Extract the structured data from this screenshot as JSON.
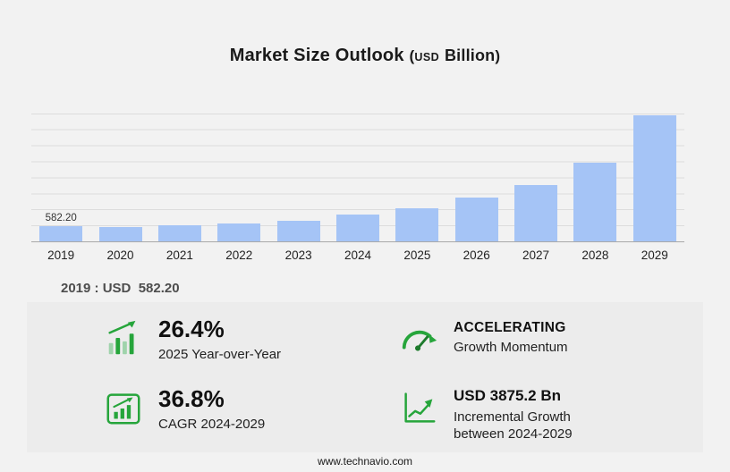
{
  "title": {
    "main": "Market Size Outlook",
    "open_paren": "(",
    "currency": "USD",
    "unit": "Billion",
    "close_paren": ")"
  },
  "chart_data": {
    "type": "bar",
    "title": "Market Size Outlook (USD Billion)",
    "categories": [
      "2019",
      "2020",
      "2021",
      "2022",
      "2023",
      "2024",
      "2025",
      "2026",
      "2027",
      "2028",
      "2029"
    ],
    "values": [
      582.2,
      560,
      615,
      690,
      800,
      1023.4,
      1293.6,
      1682,
      2185,
      3050,
      4898.6
    ],
    "xlabel": "",
    "ylabel": "USD Billion",
    "ylim": [
      0,
      4950
    ],
    "grid": true,
    "legend": "none",
    "bar_color": "#a5c4f6",
    "bar_label": {
      "index": 0,
      "text": "582.20"
    }
  },
  "annotation": {
    "text": "2019 : USD  582.20"
  },
  "stats": [
    {
      "id": "yoy",
      "icon": "growth-bars-arrow-icon",
      "value": "26.4%",
      "label": "2025 Year-over-Year"
    },
    {
      "id": "momentum",
      "icon": "speedometer-icon",
      "value": "ACCELERATING",
      "label": "Growth Momentum"
    },
    {
      "id": "cagr",
      "icon": "cagr-box-chart-icon",
      "value": "36.8%",
      "label": "CAGR 2024-2029"
    },
    {
      "id": "incremental",
      "icon": "line-growth-arrow-icon",
      "value": "USD 3875.2 Bn",
      "label": "Incremental Growth between 2024-2029"
    }
  ],
  "footer": {
    "url": "www.technavio.com"
  },
  "colors": {
    "background": "#f2f2f2",
    "panel": "#ececec",
    "bar": "#a5c4f6",
    "accent_green": "#26a53b"
  }
}
